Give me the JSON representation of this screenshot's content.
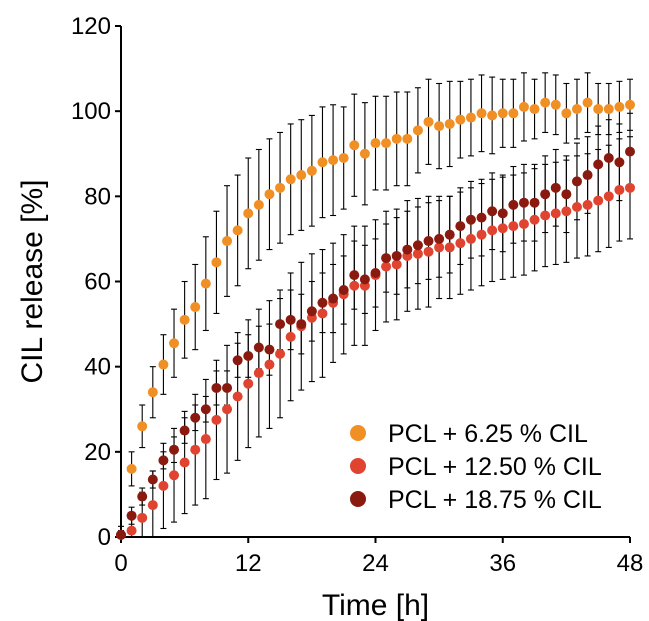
{
  "chart_data": {
    "type": "scatter",
    "title": "",
    "xlabel": "Time [h]",
    "ylabel": "CIL release [%]",
    "xlim": [
      0,
      48
    ],
    "ylim": [
      0,
      120
    ],
    "xticks": [
      0,
      12,
      24,
      36,
      48
    ],
    "yticks": [
      0,
      20,
      40,
      60,
      80,
      100,
      120
    ],
    "grid": false,
    "legend_position": "bottom-right",
    "series": [
      {
        "name": "PCL + 6.25 % CIL",
        "color": "#EF8F24",
        "x": [
          0,
          1,
          2,
          3,
          4,
          5,
          6,
          7,
          8,
          9,
          10,
          11,
          12,
          13,
          14,
          15,
          16,
          17,
          18,
          19,
          20,
          21,
          22,
          23,
          24,
          25,
          26,
          27,
          28,
          29,
          30,
          31,
          32,
          33,
          34,
          35,
          36,
          37,
          38,
          39,
          40,
          41,
          42,
          43,
          44,
          45,
          46,
          47,
          48
        ],
        "y": [
          0.5,
          16,
          26,
          34,
          40.5,
          45.5,
          51,
          54,
          59.5,
          64.5,
          69.5,
          72,
          76,
          78,
          80.5,
          82,
          84,
          85,
          86,
          88,
          88.5,
          89,
          92,
          90,
          92.5,
          92.5,
          93.5,
          93.5,
          95.5,
          97.5,
          96.5,
          97,
          98,
          98.5,
          99.5,
          99,
          99.5,
          99.5,
          101,
          100.5,
          102,
          101.5,
          99.5,
          100.5,
          102,
          100.5,
          100.5,
          101,
          101.5
        ],
        "err": [
          1,
          4,
          5,
          6,
          7,
          8,
          9,
          10,
          11,
          12,
          13,
          13,
          13,
          13,
          13,
          13,
          13,
          13,
          13,
          13,
          13,
          12,
          12,
          12,
          11,
          11,
          11,
          11,
          10,
          10,
          10,
          10,
          9,
          9,
          9,
          9,
          8,
          8,
          8,
          7,
          7,
          7,
          7,
          7,
          7,
          6,
          6,
          6,
          6
        ]
      },
      {
        "name": "PCL + 12.50 % CIL",
        "color": "#E0432F",
        "x": [
          0,
          1,
          2,
          3,
          4,
          5,
          6,
          7,
          8,
          9,
          10,
          11,
          12,
          13,
          14,
          15,
          16,
          17,
          18,
          19,
          20,
          21,
          22,
          23,
          24,
          25,
          26,
          27,
          28,
          29,
          30,
          31,
          32,
          33,
          34,
          35,
          36,
          37,
          38,
          39,
          40,
          41,
          42,
          43,
          44,
          45,
          46,
          47,
          48
        ],
        "y": [
          0.5,
          1.5,
          4.5,
          7.5,
          12,
          14.5,
          17.5,
          20.5,
          23,
          27.5,
          30,
          33,
          36,
          38.5,
          40.5,
          43,
          47,
          49.5,
          51.5,
          52.5,
          55,
          57,
          59,
          59,
          61.5,
          63.5,
          64,
          66,
          66.5,
          67,
          68,
          68,
          69,
          70,
          71,
          72,
          72.5,
          73,
          73.5,
          74.5,
          75.5,
          76,
          76.5,
          77.5,
          78,
          79,
          80,
          81.5,
          82
        ],
        "err": [
          2,
          4,
          6,
          8,
          10,
          11,
          12,
          13,
          14,
          14,
          15,
          15,
          15,
          15,
          15,
          15,
          15,
          15,
          15,
          15,
          14,
          14,
          14,
          14,
          13,
          13,
          13,
          13,
          13,
          13,
          12,
          12,
          12,
          12,
          12,
          12,
          12,
          12,
          12,
          12,
          12,
          12,
          12,
          12,
          12,
          12,
          12,
          12,
          12
        ]
      },
      {
        "name": "PCL + 18.75 % CIL",
        "color": "#8A1A10",
        "x": [
          0,
          1,
          2,
          3,
          4,
          5,
          6,
          7,
          8,
          9,
          10,
          11,
          12,
          13,
          14,
          15,
          16,
          17,
          18,
          19,
          20,
          21,
          22,
          23,
          24,
          25,
          26,
          27,
          28,
          29,
          30,
          31,
          32,
          33,
          34,
          35,
          36,
          37,
          38,
          39,
          40,
          41,
          42,
          43,
          44,
          45,
          46,
          47,
          48
        ],
        "y": [
          0.5,
          5,
          9.5,
          13.5,
          18,
          20.5,
          25,
          28,
          30,
          35,
          35,
          41.5,
          42.5,
          44.5,
          44,
          50,
          51,
          50,
          53,
          55,
          56,
          58,
          61.5,
          60.5,
          62,
          65.5,
          66,
          67.5,
          68.5,
          69.5,
          70,
          71,
          73,
          74.5,
          75,
          76.5,
          76,
          78,
          78.5,
          78.5,
          80.5,
          82,
          80.5,
          83.5,
          85,
          87.5,
          89,
          88,
          90.5
        ],
        "err": [
          1,
          2,
          2,
          2,
          2,
          3,
          3,
          3,
          3,
          4,
          4,
          4,
          5,
          5,
          6,
          6,
          7,
          7,
          7,
          7,
          8,
          8,
          8,
          8,
          8,
          8,
          9,
          9,
          9,
          9,
          9,
          9,
          9,
          9,
          9,
          9,
          9,
          9,
          9,
          9,
          9,
          9,
          9,
          9,
          9,
          9,
          9,
          9,
          9
        ]
      }
    ]
  }
}
